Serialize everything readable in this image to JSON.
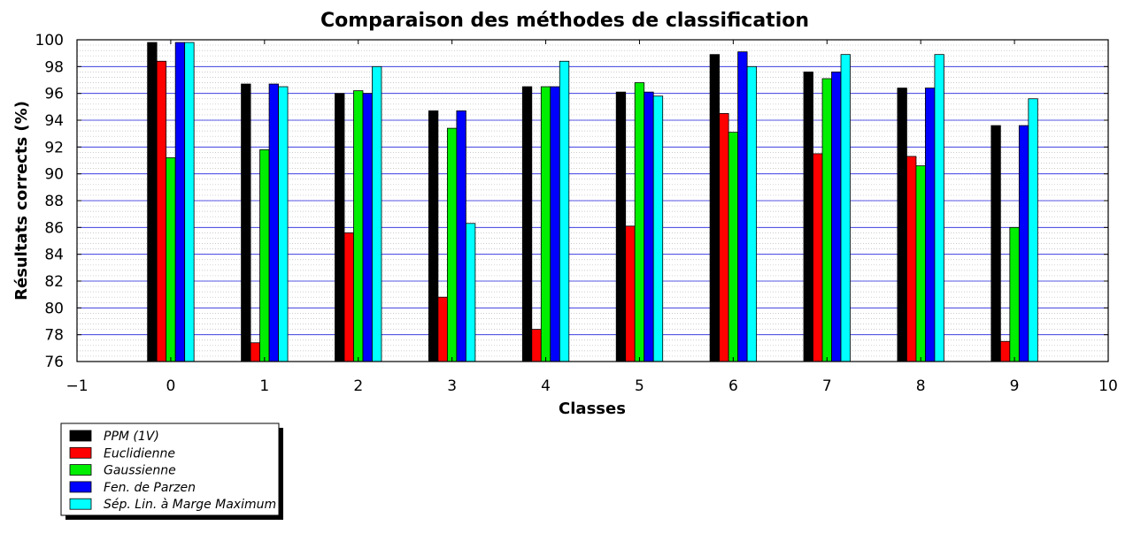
{
  "chart_data": {
    "type": "bar",
    "title": "Comparaison des méthodes de classification",
    "xlabel": "Classes",
    "ylabel": "Résultats corrects (%)",
    "xlim": [
      -1,
      10
    ],
    "ylim": [
      76,
      100
    ],
    "xticks": [
      -1,
      0,
      1,
      2,
      3,
      4,
      5,
      6,
      7,
      8,
      9,
      10
    ],
    "xtick_labels": [
      "−1",
      "0",
      "1",
      "2",
      "3",
      "4",
      "5",
      "6",
      "7",
      "8",
      "9",
      "10"
    ],
    "yticks": [
      76,
      78,
      80,
      82,
      84,
      86,
      88,
      90,
      92,
      94,
      96,
      98,
      100
    ],
    "categories": [
      0,
      1,
      2,
      3,
      4,
      5,
      6,
      7,
      8,
      9
    ],
    "grid": {
      "major": true,
      "minor": true,
      "major_color": "#2222dd",
      "minor_color": "#bbbbbb"
    },
    "legend_position": "below-left",
    "series": [
      {
        "name": "PPM (1V)",
        "color": "#000000",
        "values": [
          99.8,
          96.7,
          96.0,
          94.7,
          96.5,
          96.1,
          98.9,
          97.6,
          96.4,
          93.6
        ]
      },
      {
        "name": "Euclidienne",
        "color": "#ff0000",
        "values": [
          98.4,
          77.4,
          85.6,
          80.8,
          78.4,
          86.1,
          94.5,
          91.5,
          91.3,
          77.5
        ]
      },
      {
        "name": "Gaussienne",
        "color": "#00ee00",
        "values": [
          91.2,
          91.8,
          96.2,
          93.4,
          96.5,
          96.8,
          93.1,
          97.1,
          90.6,
          86.0
        ]
      },
      {
        "name": "Fen. de Parzen",
        "color": "#0000ff",
        "values": [
          99.8,
          96.7,
          96.0,
          94.7,
          96.5,
          96.1,
          99.1,
          97.6,
          96.4,
          93.6
        ]
      },
      {
        "name": "Sép. Lin. à Marge Maximum",
        "color": "#00ffff",
        "values": [
          99.8,
          96.5,
          98.0,
          86.3,
          98.4,
          95.8,
          98.0,
          98.9,
          98.9,
          95.6
        ]
      }
    ]
  }
}
